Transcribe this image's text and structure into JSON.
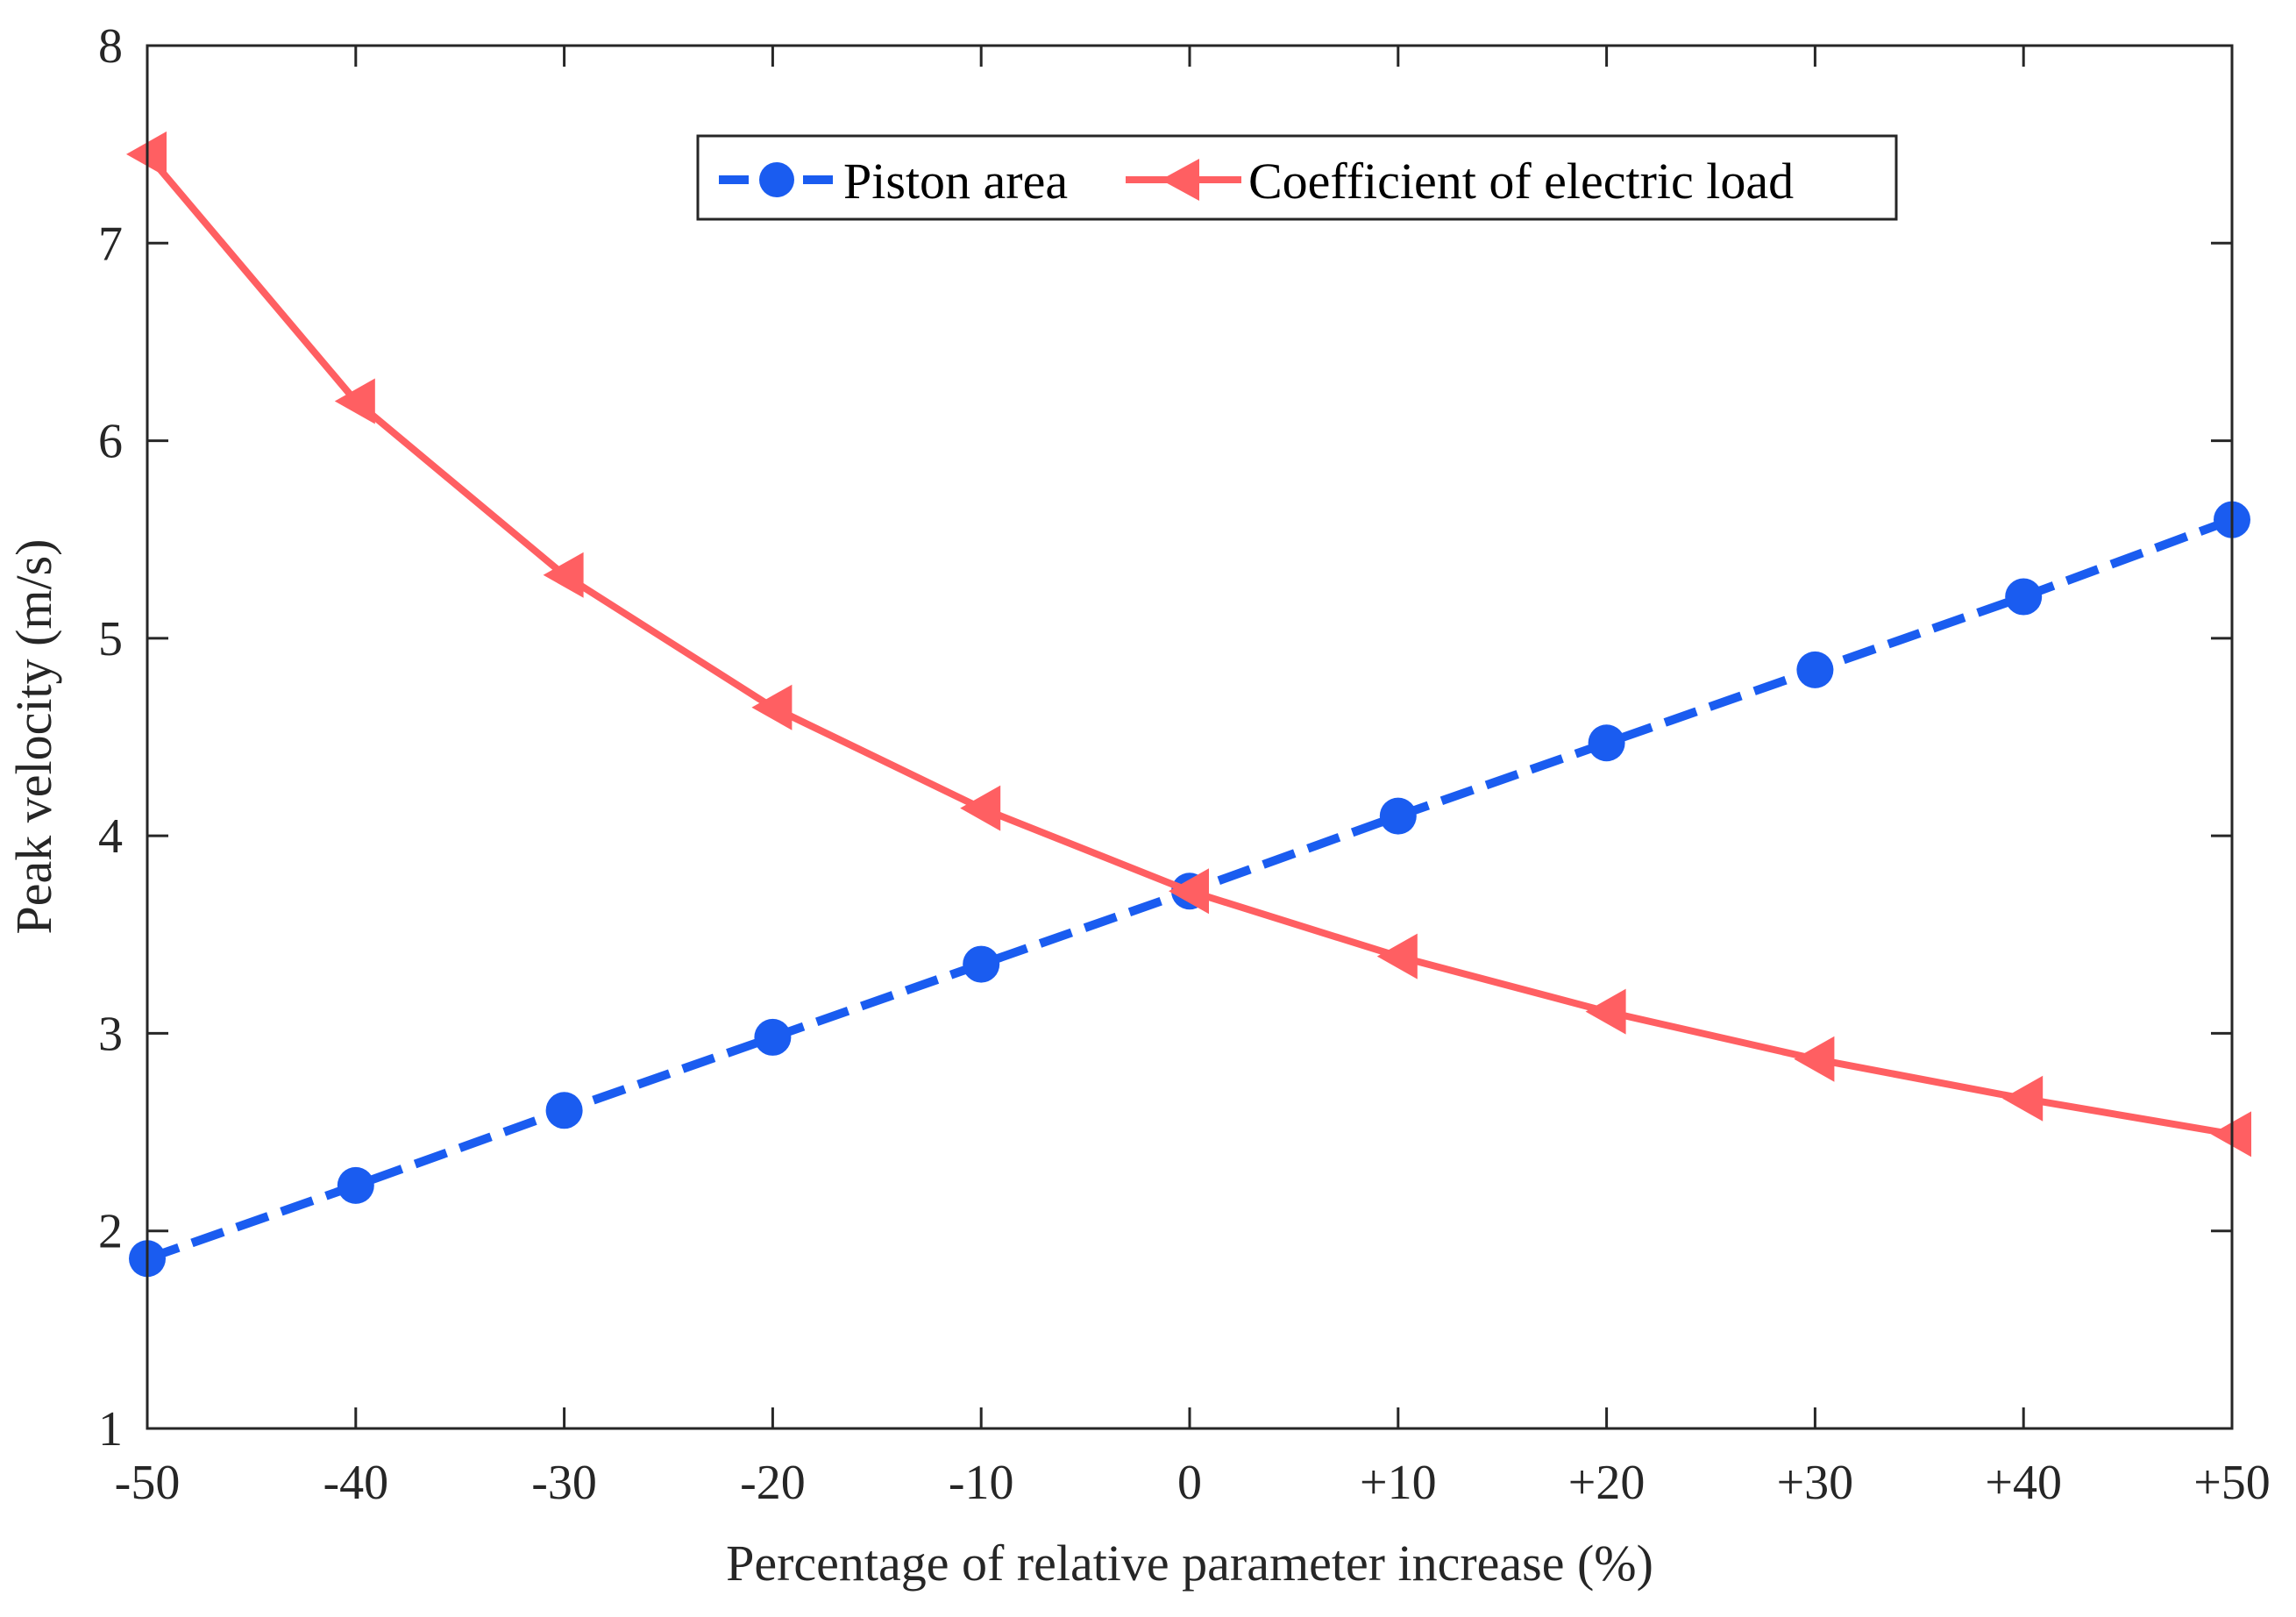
{
  "chart_data": {
    "type": "line",
    "title": "",
    "xlabel": "Percentage of relative parameter increase (%)",
    "ylabel": "Peak velocity (m/s)",
    "categories": [
      "-50",
      "-40",
      "-30",
      "-20",
      "-10",
      "0",
      "+10",
      "+20",
      "+30",
      "+40",
      "+50"
    ],
    "x": [
      -50,
      -40,
      -30,
      -20,
      -10,
      0,
      10,
      20,
      30,
      40,
      50
    ],
    "xlim": [
      -50,
      50
    ],
    "ylim": [
      1,
      8
    ],
    "yticks": [
      1,
      2,
      3,
      4,
      5,
      6,
      7,
      8
    ],
    "grid": false,
    "legend_position": "top-center",
    "series": [
      {
        "name": "Piston area",
        "color": "#1a5cf0",
        "line_style": "dashed",
        "marker": "circle",
        "values": [
          1.86,
          2.23,
          2.61,
          2.98,
          3.35,
          3.72,
          4.1,
          4.47,
          4.84,
          5.21,
          5.6
        ]
      },
      {
        "name": "Coefficient of electric load",
        "color": "#ff5f62",
        "line_style": "solid",
        "marker": "triangle-left",
        "values": [
          7.45,
          6.2,
          5.32,
          4.65,
          4.14,
          3.72,
          3.39,
          3.11,
          2.87,
          2.67,
          2.49
        ]
      }
    ]
  }
}
